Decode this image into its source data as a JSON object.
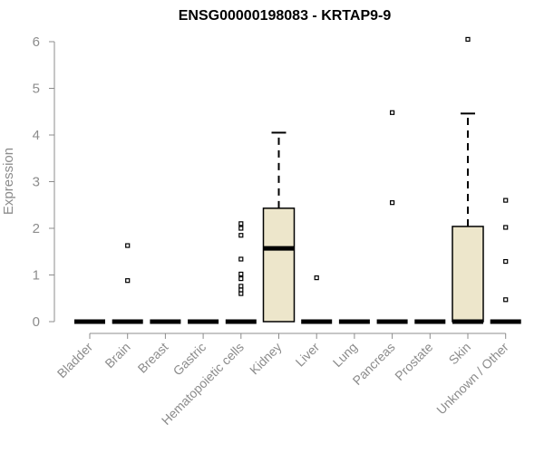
{
  "colors": {
    "box_fill": "#ede6cb",
    "box_stroke": "#000000",
    "axis": "#8c8c8c",
    "text": "#8c8c8c",
    "title": "#000000"
  },
  "chart_data": {
    "type": "boxplot",
    "title": "ENSG00000198083 - KRTAP9-9",
    "xlabel": "",
    "ylabel": "Expression",
    "ylim": [
      0,
      6
    ],
    "yticks": [
      0,
      1,
      2,
      3,
      4,
      5,
      6
    ],
    "categories": [
      "Bladder",
      "Brain",
      "Breast",
      "Gastric",
      "Hematopoietic cells",
      "Kidney",
      "Liver",
      "Lung",
      "Pancreas",
      "Prostate",
      "Skin",
      "Unknown / Other"
    ],
    "boxes": [
      {
        "category": "Bladder",
        "min": 0,
        "q1": 0,
        "median": 0,
        "q3": 0,
        "max": 0,
        "outliers": []
      },
      {
        "category": "Brain",
        "min": 0,
        "q1": 0,
        "median": 0,
        "q3": 0,
        "max": 0,
        "outliers": [
          0.88,
          1.63
        ]
      },
      {
        "category": "Breast",
        "min": 0,
        "q1": 0,
        "median": 0,
        "q3": 0,
        "max": 0,
        "outliers": []
      },
      {
        "category": "Gastric",
        "min": 0,
        "q1": 0,
        "median": 0,
        "q3": 0,
        "max": 0,
        "outliers": []
      },
      {
        "category": "Hematopoietic cells",
        "min": 0,
        "q1": 0,
        "median": 0,
        "q3": 0,
        "max": 0,
        "outliers": [
          0.6,
          0.68,
          0.76,
          0.92,
          1.02,
          1.34,
          1.85,
          2.0,
          2.1
        ]
      },
      {
        "category": "Kidney",
        "min": 0,
        "q1": 0,
        "median": 1.57,
        "q3": 2.43,
        "max": 4.05,
        "outliers": []
      },
      {
        "category": "Liver",
        "min": 0,
        "q1": 0,
        "median": 0,
        "q3": 0,
        "max": 0,
        "outliers": [
          0.94
        ]
      },
      {
        "category": "Lung",
        "min": 0,
        "q1": 0,
        "median": 0,
        "q3": 0,
        "max": 0,
        "outliers": []
      },
      {
        "category": "Pancreas",
        "min": 0,
        "q1": 0,
        "median": 0,
        "q3": 0,
        "max": 0,
        "outliers": [
          2.55,
          4.48
        ]
      },
      {
        "category": "Prostate",
        "min": 0,
        "q1": 0,
        "median": 0,
        "q3": 0,
        "max": 0,
        "outliers": []
      },
      {
        "category": "Skin",
        "min": 0,
        "q1": 0,
        "median": 0,
        "q3": 2.04,
        "max": 4.46,
        "outliers": [
          6.05
        ]
      },
      {
        "category": "Unknown / Other",
        "min": 0,
        "q1": 0,
        "median": 0,
        "q3": 0,
        "max": 0,
        "outliers": [
          0.47,
          1.29,
          2.02,
          2.6
        ]
      }
    ]
  }
}
